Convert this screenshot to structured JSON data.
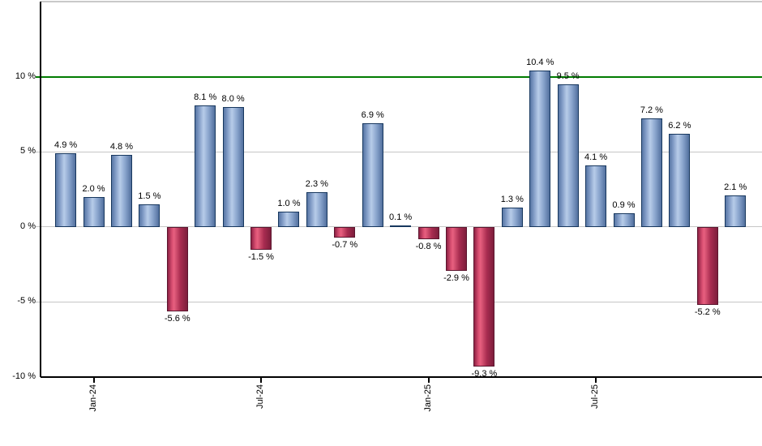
{
  "chart_data": {
    "type": "bar",
    "title": "",
    "xlabel": "",
    "ylabel": "",
    "values": [
      4.9,
      2.0,
      4.8,
      1.5,
      -5.6,
      8.1,
      8.0,
      -1.5,
      1.0,
      2.3,
      -0.7,
      6.9,
      0.1,
      -0.8,
      -2.9,
      -9.3,
      1.3,
      10.4,
      9.5,
      4.1,
      0.9,
      7.2,
      6.2,
      -5.2,
      2.1
    ],
    "bar_labels": [
      "4.9 %",
      "2.0 %",
      "4.8 %",
      "1.5 %",
      "-5.6 %",
      "8.1 %",
      "8.0 %",
      "-1.5 %",
      "1.0 %",
      "2.3 %",
      "-0.7 %",
      "6.9 %",
      "0.1 %",
      "-0.8 %",
      "-2.9 %",
      "-9.3 %",
      "1.3 %",
      "10.4 %",
      "9.5 %",
      "4.1 %",
      "0.9 %",
      "7.2 %",
      "6.2 %",
      "-5.2 %",
      "2.1 %"
    ],
    "x_axis": {
      "tick_labels": [
        "Jan-24",
        "Jul-24",
        "Jan-25",
        "Jul-25"
      ],
      "tick_bar_indexes": [
        1,
        7,
        13,
        19
      ]
    },
    "y_axis": {
      "tick_labels": [
        "10 %",
        "5 %",
        "0 %",
        "-5 %",
        "-10 %"
      ],
      "tick_values": [
        10,
        5,
        0,
        -5,
        -10
      ],
      "range": [
        -10,
        15
      ]
    },
    "reference_line": {
      "value": 10,
      "color": "#007b00"
    },
    "grid": true,
    "legend": false,
    "colors": {
      "positive_bar_edge": "#5776a4",
      "positive_bar_main": "#b7cce9",
      "positive_bar_border": "#17375e",
      "negative_bar_edge": "#8e2144",
      "negative_bar_main": "#e7607f",
      "negative_bar_border": "#5c162f",
      "gridline": "#c6c6c6",
      "plot_top_border": "#c9c9c9",
      "axis": "#000000",
      "label_text": "#000000"
    }
  }
}
